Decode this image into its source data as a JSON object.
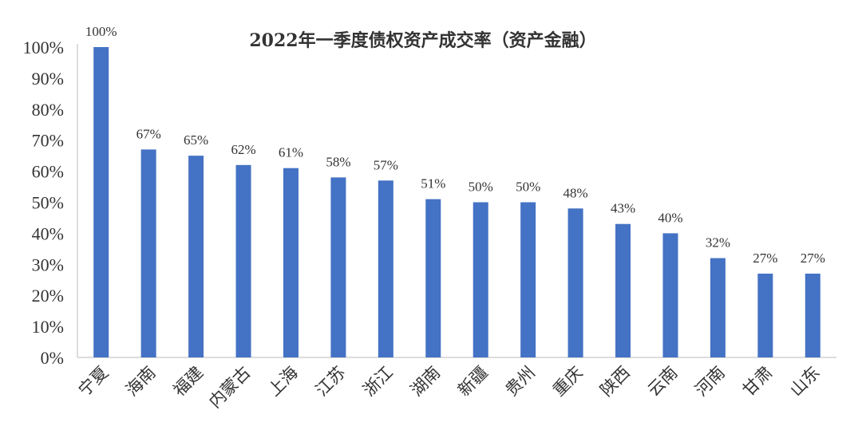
{
  "chart_data": {
    "type": "bar",
    "title": "2022年一季度债权资产成交率（资产金融）",
    "categories": [
      "宁夏",
      "海南",
      "福建",
      "内蒙古",
      "上海",
      "江苏",
      "浙江",
      "湖南",
      "新疆",
      "贵州",
      "重庆",
      "陕西",
      "云南",
      "河南",
      "甘肃",
      "山东"
    ],
    "values": [
      100,
      67,
      65,
      62,
      61,
      58,
      57,
      51,
      50,
      50,
      48,
      43,
      40,
      32,
      27,
      27
    ],
    "data_labels": [
      "100%",
      "67%",
      "65%",
      "62%",
      "61%",
      "58%",
      "57%",
      "51%",
      "50%",
      "50%",
      "48%",
      "43%",
      "40%",
      "32%",
      "27%",
      "27%"
    ],
    "yticks": [
      0,
      10,
      20,
      30,
      40,
      50,
      60,
      70,
      80,
      90,
      100
    ],
    "ytick_labels": [
      "0%",
      "10%",
      "20%",
      "30%",
      "40%",
      "50%",
      "60%",
      "70%",
      "80%",
      "90%",
      "100%"
    ],
    "ylim": [
      0,
      100
    ],
    "grid": false,
    "bar_color": "#4472C4"
  }
}
